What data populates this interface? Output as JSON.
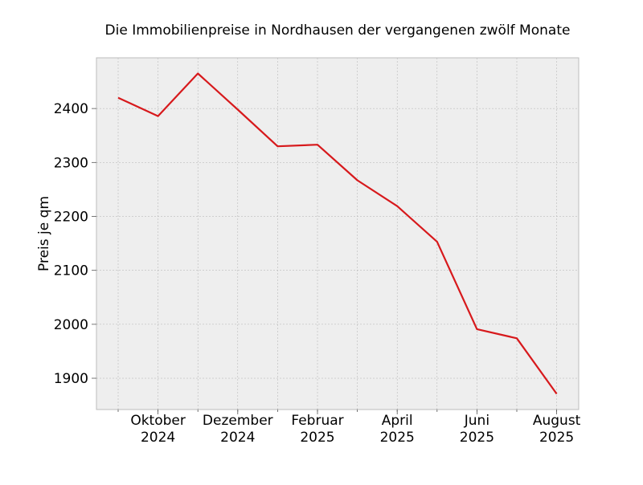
{
  "chart_data": {
    "type": "line",
    "title": "Die Immobilienpreise in Nordhausen der vergangenen zwölf Monate",
    "xlabel": "",
    "ylabel": "Preis je qm",
    "x": [
      "2024-09",
      "2024-10",
      "2024-11",
      "2024-12",
      "2025-01",
      "2025-02",
      "2025-03",
      "2025-04",
      "2025-05",
      "2025-06",
      "2025-07",
      "2025-08"
    ],
    "series": [
      {
        "values": [
          2420,
          2386,
          2465,
          2398,
          2330,
          2333,
          2267,
          2219,
          2153,
          1991,
          1974,
          1871
        ]
      }
    ],
    "xticks": [
      {
        "x": "2024-10",
        "label": [
          "Oktober",
          "2024"
        ]
      },
      {
        "x": "2024-12",
        "label": [
          "Dezember",
          "2024"
        ]
      },
      {
        "x": "2025-02",
        "label": [
          "Februar",
          "2025"
        ]
      },
      {
        "x": "2025-04",
        "label": [
          "April",
          "2025"
        ]
      },
      {
        "x": "2025-06",
        "label": [
          "Juni",
          "2025"
        ]
      },
      {
        "x": "2025-08",
        "label": [
          "August",
          "2025"
        ]
      }
    ],
    "yticks": [
      1900,
      2000,
      2100,
      2200,
      2300,
      2400
    ],
    "ylim": [
      1842,
      2494
    ],
    "grid": true,
    "colors": {
      "line": "#d7191c",
      "plot_background": "#eeeeee",
      "grid": "#b0b0b0",
      "frame": "#bcbcbc"
    }
  }
}
